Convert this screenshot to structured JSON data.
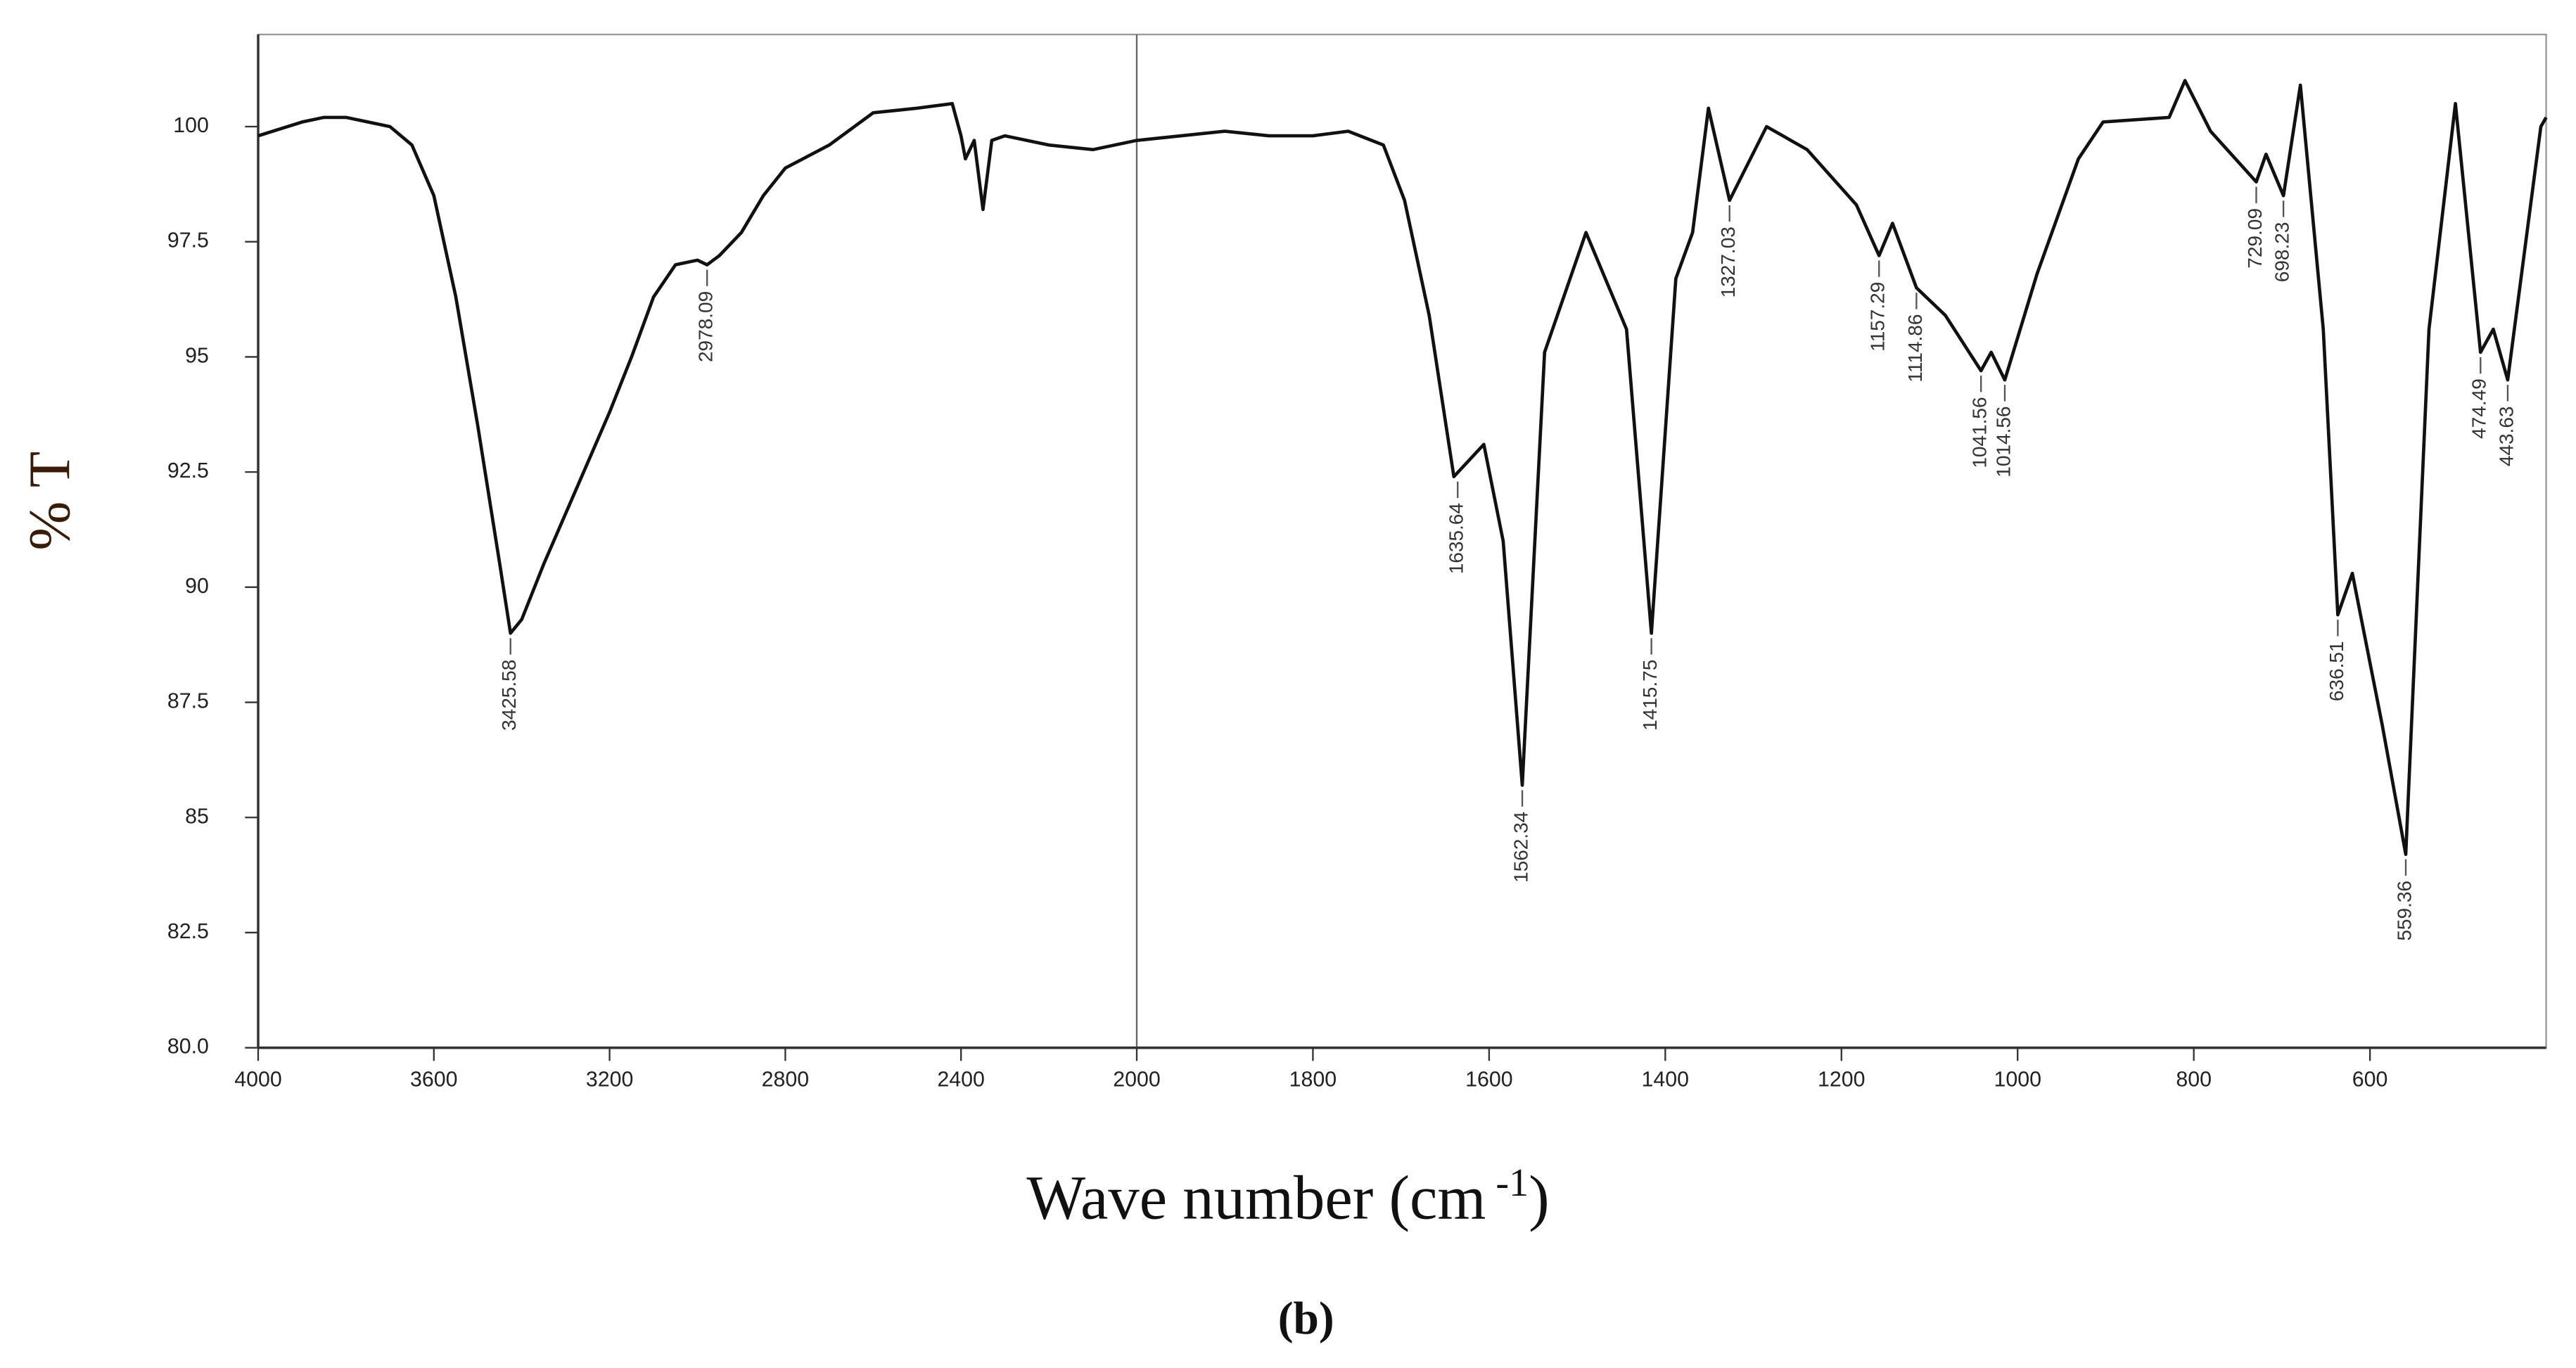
{
  "chart_data": {
    "type": "line",
    "ylabel": "% T",
    "xlabel": {
      "text": "Wave number (cm",
      "superscript": "-1",
      "suffix": ")"
    },
    "caption": "(b)",
    "xlim": [
      4000,
      400
    ],
    "x_scale_break": 2000,
    "xticks": [
      4000,
      3600,
      3200,
      2800,
      2400,
      2000,
      1800,
      1600,
      1400,
      1200,
      1000,
      800,
      600
    ],
    "ylim": [
      80,
      102
    ],
    "yticks": [
      {
        "value": 80,
        "label": "80.0"
      },
      82.5,
      85,
      87.5,
      90,
      92.5,
      95,
      97.5,
      100
    ],
    "series": [
      {
        "color": "#111111",
        "x": [
          4000,
          3900,
          3850,
          3800,
          3750,
          3700,
          3650,
          3600,
          3550,
          3500,
          3450,
          3425.58,
          3400,
          3350,
          3300,
          3250,
          3200,
          3150,
          3100,
          3050,
          3000,
          2978.09,
          2950,
          2900,
          2850,
          2800,
          2700,
          2600,
          2500,
          2420,
          2400,
          2390,
          2370,
          2350,
          2330,
          2300,
          2200,
          2100,
          2000,
          1900,
          1850,
          1800,
          1760,
          1720,
          1696,
          1668,
          1640,
          1606,
          1584,
          1562.34,
          1537,
          1490,
          1444,
          1415.75,
          1388,
          1369,
          1351,
          1327.03,
          1285,
          1239,
          1183,
          1157.29,
          1142,
          1114.86,
          1082,
          1041.56,
          1030,
          1014.56,
          978,
          931,
          903,
          828,
          810,
          781,
          729.09,
          718,
          698.23,
          679,
          653,
          636.51,
          620,
          586,
          559.36,
          533,
          503,
          474.49,
          460,
          443.63,
          406,
          400
        ],
        "values": [
          99.8,
          100.1,
          100.2,
          100.2,
          100.1,
          100.0,
          99.6,
          98.5,
          96.3,
          93.5,
          90.5,
          89.0,
          89.3,
          90.5,
          91.6,
          92.7,
          93.8,
          95.0,
          96.3,
          97.0,
          97.1,
          97.0,
          97.2,
          97.7,
          98.5,
          99.1,
          99.6,
          100.3,
          100.4,
          100.5,
          99.8,
          99.3,
          99.7,
          98.2,
          99.7,
          99.8,
          99.6,
          99.5,
          99.7,
          99.9,
          99.8,
          99.8,
          99.9,
          99.6,
          98.4,
          95.9,
          92.4,
          93.1,
          91.0,
          85.7,
          95.1,
          97.7,
          95.6,
          89.0,
          96.7,
          97.7,
          100.4,
          98.4,
          100.0,
          99.5,
          98.3,
          97.2,
          97.9,
          96.5,
          95.9,
          94.7,
          95.1,
          94.5,
          96.8,
          99.3,
          100.1,
          100.2,
          101.0,
          99.9,
          98.8,
          99.4,
          98.5,
          100.9,
          95.6,
          89.4,
          90.3,
          87.0,
          84.2,
          95.6,
          100.5,
          95.1,
          95.6,
          94.5,
          100.0,
          100.2
        ]
      }
    ],
    "annotations": [
      {
        "label": "3425.58",
        "x": 3425.58,
        "y": 89.0
      },
      {
        "label": "2978.09",
        "x": 2978.09,
        "y": 97.0
      },
      {
        "label": "1635.64",
        "x": 1635.64,
        "y": 92.4
      },
      {
        "label": "1562.34",
        "x": 1562.34,
        "y": 85.7
      },
      {
        "label": "1415.75",
        "x": 1415.75,
        "y": 89.0
      },
      {
        "label": "1327.03",
        "x": 1327.03,
        "y": 98.4
      },
      {
        "label": "1157.29",
        "x": 1157.29,
        "y": 97.2
      },
      {
        "label": "1114.86",
        "x": 1114.86,
        "y": 96.5
      },
      {
        "label": "1041.56",
        "x": 1041.56,
        "y": 94.7
      },
      {
        "label": "1014.56",
        "x": 1014.56,
        "y": 94.5
      },
      {
        "label": "729.09",
        "x": 729.09,
        "y": 98.8
      },
      {
        "label": "698.23",
        "x": 698.23,
        "y": 98.5
      },
      {
        "label": "636.51",
        "x": 636.51,
        "y": 89.4
      },
      {
        "label": "559.36",
        "x": 559.36,
        "y": 84.2
      },
      {
        "label": "474.49",
        "x": 474.49,
        "y": 95.1
      },
      {
        "label": "443.63",
        "x": 443.63,
        "y": 94.5
      }
    ]
  }
}
